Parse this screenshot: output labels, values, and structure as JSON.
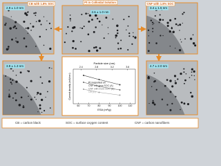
{
  "panels": [
    {
      "caption": "CB with 1.8% SOC",
      "size": "2.9 ± 1.0 nm"
    },
    {
      "caption": "Pt in Colloidal Solution",
      "size": "2.6 ± 1.0 nm"
    },
    {
      "caption": "CNF with 1.8% SOC",
      "size": "3.4 ± 1.5 nm"
    },
    {
      "size": "3.9 ± 1.3 nm"
    },
    {
      "size": "4.7 ± 2.0 nm"
    }
  ],
  "inset_chart": {
    "type": "line",
    "top_axis_label": "Particle size (nm)",
    "x_label": "ESA (m²/g)",
    "y_label": "Current density (mA/cm²)",
    "xlim": [
      55,
      115
    ],
    "xticks": [
      60,
      70,
      80,
      90,
      100,
      110
    ],
    "top_xlim": [
      2.2,
      3.8
    ],
    "top_xticks": [
      2.4,
      2.8,
      3.2,
      3.6
    ],
    "ylim": [
      0,
      1
    ],
    "legend_title": "Pt supported on",
    "series": [
      {
        "name": "CNF with less SOC (A)",
        "color": "#333333",
        "x": [
          65,
          80,
          100
        ],
        "values": [
          0.82,
          0.7,
          0.55
        ]
      },
      {
        "name": "CNF with more SOC (B)",
        "color": "#666666",
        "x": [
          65,
          80,
          100
        ],
        "values": [
          0.62,
          0.5,
          0.4
        ]
      },
      {
        "name": "CB (C)",
        "color": "#999999",
        "x": [
          65,
          80,
          100
        ],
        "values": [
          0.42,
          0.33,
          0.25
        ]
      }
    ]
  },
  "footer": [
    "CB = carbon black",
    "SOC = surface oxygen content",
    "CNF = carbon nanofibers"
  ]
}
